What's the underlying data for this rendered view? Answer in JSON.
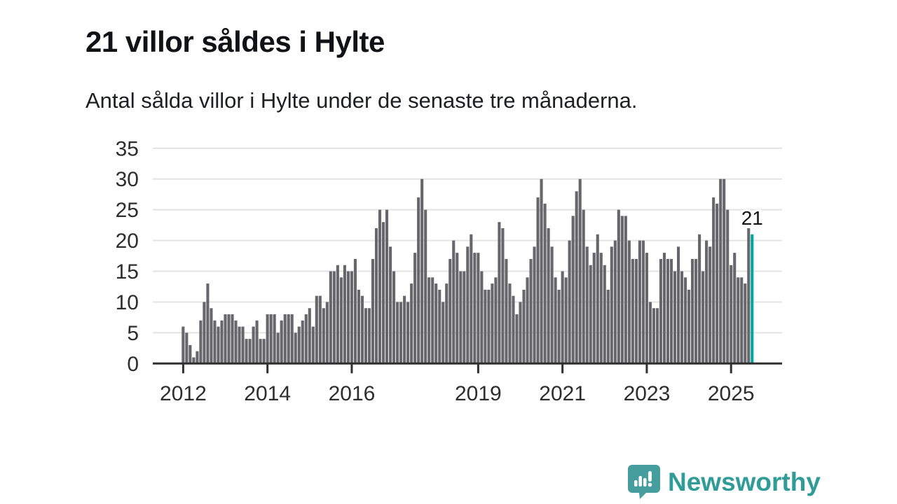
{
  "header": {
    "title": "21 villor såldes i Hylte",
    "subtitle": "Antal sålda villor i Hylte under de senaste tre månaderna."
  },
  "chart_data": {
    "type": "bar",
    "title": "21 villor såldes i Hylte",
    "subtitle": "Antal sålda villor i Hylte under de senaste tre månaderna.",
    "x_start": "2012-01",
    "frequency": "monthly",
    "values": [
      6,
      5,
      3,
      1,
      2,
      7,
      10,
      13,
      9,
      7,
      6,
      7,
      8,
      8,
      8,
      7,
      6,
      6,
      4,
      4,
      6,
      7,
      4,
      4,
      8,
      8,
      8,
      5,
      7,
      8,
      8,
      8,
      5,
      6,
      7,
      8,
      9,
      6,
      11,
      11,
      9,
      10,
      15,
      15,
      16,
      14,
      16,
      15,
      15,
      17,
      12,
      11,
      9,
      9,
      17,
      22,
      25,
      23,
      25,
      19,
      15,
      10,
      10,
      11,
      10,
      13,
      18,
      27,
      30,
      25,
      14,
      14,
      13,
      12,
      10,
      13,
      17,
      20,
      18,
      15,
      15,
      19,
      21,
      18,
      18,
      15,
      12,
      12,
      13,
      14,
      23,
      22,
      17,
      13,
      11,
      8,
      10,
      12,
      14,
      17,
      19,
      27,
      30,
      26,
      22,
      19,
      14,
      12,
      15,
      14,
      20,
      24,
      28,
      30,
      25,
      19,
      16,
      18,
      21,
      18,
      16,
      12,
      19,
      20,
      25,
      24,
      24,
      20,
      17,
      17,
      20,
      20,
      18,
      10,
      9,
      9,
      17,
      18,
      17,
      17,
      15,
      19,
      15,
      14,
      12,
      17,
      17,
      21,
      15,
      20,
      19,
      27,
      26,
      30,
      30,
      25,
      16,
      18,
      14,
      14,
      13,
      22,
      21
    ],
    "ylim": [
      0,
      35
    ],
    "y_ticks": [
      0,
      5,
      10,
      15,
      20,
      25,
      30,
      35
    ],
    "x_tick_years": [
      2012,
      2014,
      2016,
      2019,
      2021,
      2023,
      2025
    ],
    "grid": true,
    "legend": "none",
    "bar_color": "#66666b",
    "highlight_color": "#00a79e",
    "highlight_last": true,
    "annotation": {
      "text": "21"
    }
  },
  "branding": {
    "logo_text": "Newsworthy",
    "logo_color": "#459d9d",
    "logo_text_color": "#2f9c98"
  }
}
